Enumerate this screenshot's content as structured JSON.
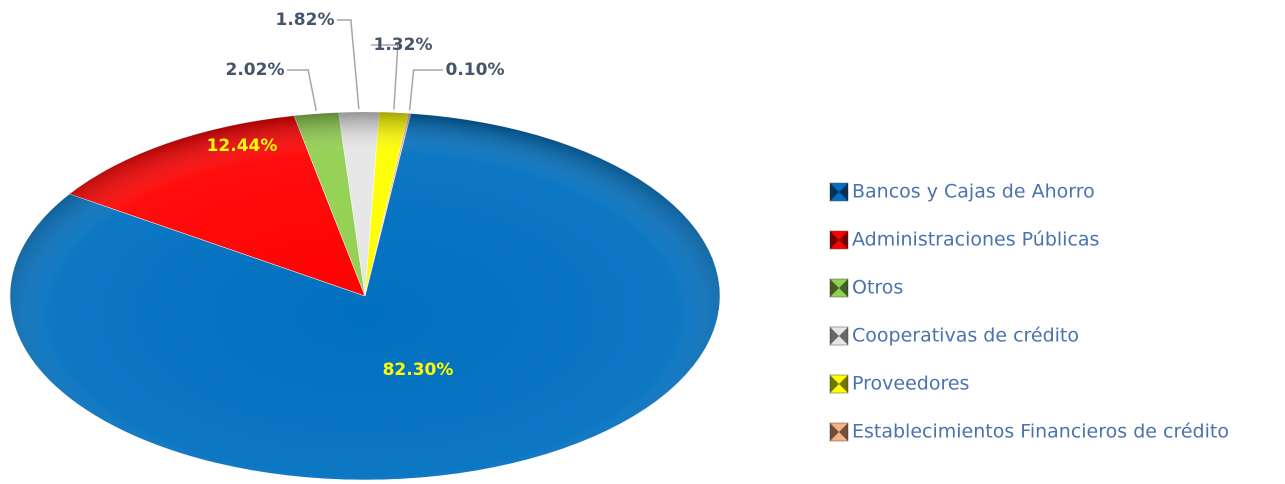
{
  "chart_data": {
    "type": "pie",
    "categories": [
      "Bancos y Cajas de Ahorro",
      "Administraciones Públicas",
      "Otros",
      "Cooperativas de crédito",
      "Proveedores",
      "Establecimientos Financieros de crédito"
    ],
    "values": [
      82.3,
      12.44,
      2.02,
      1.82,
      1.32,
      0.1
    ],
    "value_labels": [
      "82.30%",
      "12.44%",
      "2.02%",
      "1.82%",
      "1.32%",
      "0.10%"
    ],
    "colors": [
      "#0070c0",
      "#ff0000",
      "#92d050",
      "#e7e6e6",
      "#ffff00",
      "#f4b183"
    ],
    "legend": "right"
  }
}
